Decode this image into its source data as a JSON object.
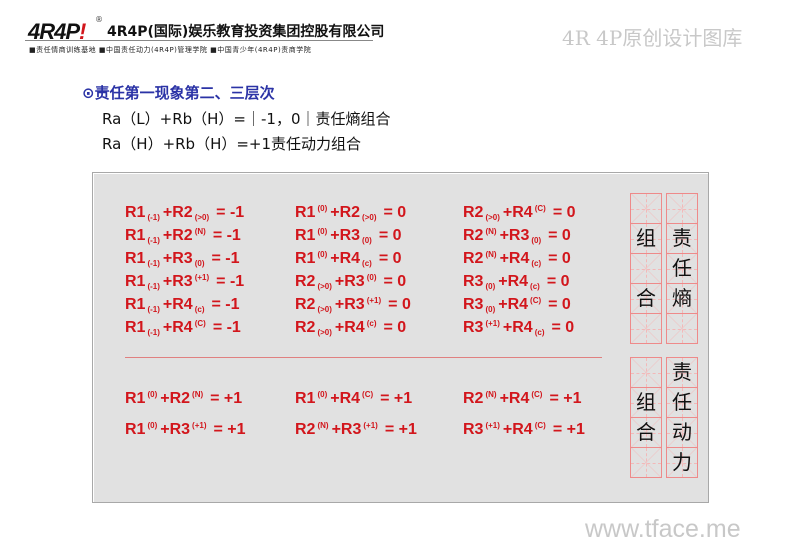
{
  "header": {
    "logo_text": "4R4P",
    "logo_mark": "!",
    "registered": "®",
    "company": "4R4P(国际)娱乐教育投资集团控股有限公司",
    "tagline": "■责任情商训练基地  ■中国责任动力(4R4P)管理学院  ■中国青少年(4R4P)责商学院",
    "brand": "4R 4P原创设计图库"
  },
  "heading": {
    "icon": "circle-dot-icon",
    "title": "⊙责任第一现象第二、三层次",
    "lines": [
      "Ra（L）+Rb（H）=｜-1，0｜责任熵组合",
      "Ra（H）+Rb（H）=+1责任动力组合"
    ]
  },
  "colors": {
    "formula": "#d2161c",
    "heading": "#2b33a6"
  },
  "entropy_formulas": [
    [
      {
        "a": "R1",
        "am": "(-1)",
        "ap": "sub",
        "b": "+R2",
        "bm": "(>0)",
        "bp": "sub",
        "res": "= -1"
      },
      {
        "a": "R1",
        "am": "(-1)",
        "ap": "sub",
        "b": "+R2",
        "bm": "(N)",
        "bp": "sup",
        "res": "= -1"
      },
      {
        "a": "R1",
        "am": "(-1)",
        "ap": "sub",
        "b": "+R3",
        "bm": "(0)",
        "bp": "sub",
        "res": "= -1"
      },
      {
        "a": "R1",
        "am": "(-1)",
        "ap": "sub",
        "b": "+R3",
        "bm": "(+1)",
        "bp": "sup",
        "res": "= -1"
      },
      {
        "a": "R1",
        "am": "(-1)",
        "ap": "sub",
        "b": "+R4",
        "bm": "(c)",
        "bp": "sub",
        "res": "= -1"
      },
      {
        "a": "R1",
        "am": "(-1)",
        "ap": "sub",
        "b": "+R4",
        "bm": "(C)",
        "bp": "sup",
        "res": "= -1"
      }
    ],
    [
      {
        "a": "R1",
        "am": "(0)",
        "ap": "sup",
        "b": "+R2",
        "bm": "(>0)",
        "bp": "sub",
        "res": "= 0"
      },
      {
        "a": "R1",
        "am": "(0)",
        "ap": "sup",
        "b": "+R3",
        "bm": "(0)",
        "bp": "sub",
        "res": "= 0"
      },
      {
        "a": "R1",
        "am": "(0)",
        "ap": "sup",
        "b": "+R4",
        "bm": "(c)",
        "bp": "sub",
        "res": "= 0"
      },
      {
        "a": "R2",
        "am": "(>0)",
        "ap": "sub",
        "b": "+R3",
        "bm": "(0)",
        "bp": "sup",
        "res": "= 0"
      },
      {
        "a": "R2",
        "am": "(>0)",
        "ap": "sub",
        "b": "+R3",
        "bm": "(+1)",
        "bp": "sup",
        "res": "= 0"
      },
      {
        "a": "R2",
        "am": "(>0)",
        "ap": "sub",
        "b": "+R4",
        "bm": "(c)",
        "bp": "sup",
        "res": "= 0"
      }
    ],
    [
      {
        "a": "R2",
        "am": "(>0)",
        "ap": "sub",
        "b": "+R4",
        "bm": "(C)",
        "bp": "sup",
        "res": "= 0"
      },
      {
        "a": "R2",
        "am": "(N)",
        "ap": "sup",
        "b": "+R3",
        "bm": "(0)",
        "bp": "sub",
        "res": "= 0"
      },
      {
        "a": "R2",
        "am": "(N)",
        "ap": "sup",
        "b": "+R4",
        "bm": "(c)",
        "bp": "sub",
        "res": "= 0"
      },
      {
        "a": "R3",
        "am": "(0)",
        "ap": "sub",
        "b": "+R4",
        "bm": "(c)",
        "bp": "sub",
        "res": "= 0"
      },
      {
        "a": "R3",
        "am": "(0)",
        "ap": "sub",
        "b": "+R4",
        "bm": "(C)",
        "bp": "sup",
        "res": "= 0"
      },
      {
        "a": "R3",
        "am": "(+1)",
        "ap": "sup",
        "b": "+R4",
        "bm": "(c)",
        "bp": "sub",
        "res": "= 0"
      }
    ]
  ],
  "power_formulas": [
    [
      {
        "a": "R1",
        "am": "(0)",
        "ap": "sup",
        "b": "+R2",
        "bm": "(N)",
        "bp": "sup",
        "res": "= +1"
      },
      {
        "a": "R1",
        "am": "(0)",
        "ap": "sup",
        "b": "+R3",
        "bm": "(+1)",
        "bp": "sup",
        "res": "= +1"
      }
    ],
    [
      {
        "a": "R1",
        "am": "(0)",
        "ap": "sup",
        "b": "+R4",
        "bm": "(C)",
        "bp": "sup",
        "res": "= +1"
      },
      {
        "a": "R2",
        "am": "(N)",
        "ap": "sup",
        "b": "+R3",
        "bm": "(+1)",
        "bp": "sup",
        "res": "= +1"
      }
    ],
    [
      {
        "a": "R2",
        "am": "(N)",
        "ap": "sup",
        "b": "+R4",
        "bm": "(C)",
        "bp": "sup",
        "res": "= +1"
      },
      {
        "a": "R3",
        "am": "(+1)",
        "ap": "sup",
        "b": "+R4",
        "bm": "(C)",
        "bp": "sup",
        "res": "= +1"
      }
    ]
  ],
  "grid_entropy": {
    "left": [
      "",
      "组",
      "",
      "合",
      ""
    ],
    "right": [
      "",
      "责",
      "任",
      "熵",
      ""
    ]
  },
  "grid_power": {
    "left": [
      "",
      "组",
      "合",
      ""
    ],
    "right": [
      "责",
      "任",
      "动",
      "力"
    ]
  },
  "watermark": "www.tface.me"
}
